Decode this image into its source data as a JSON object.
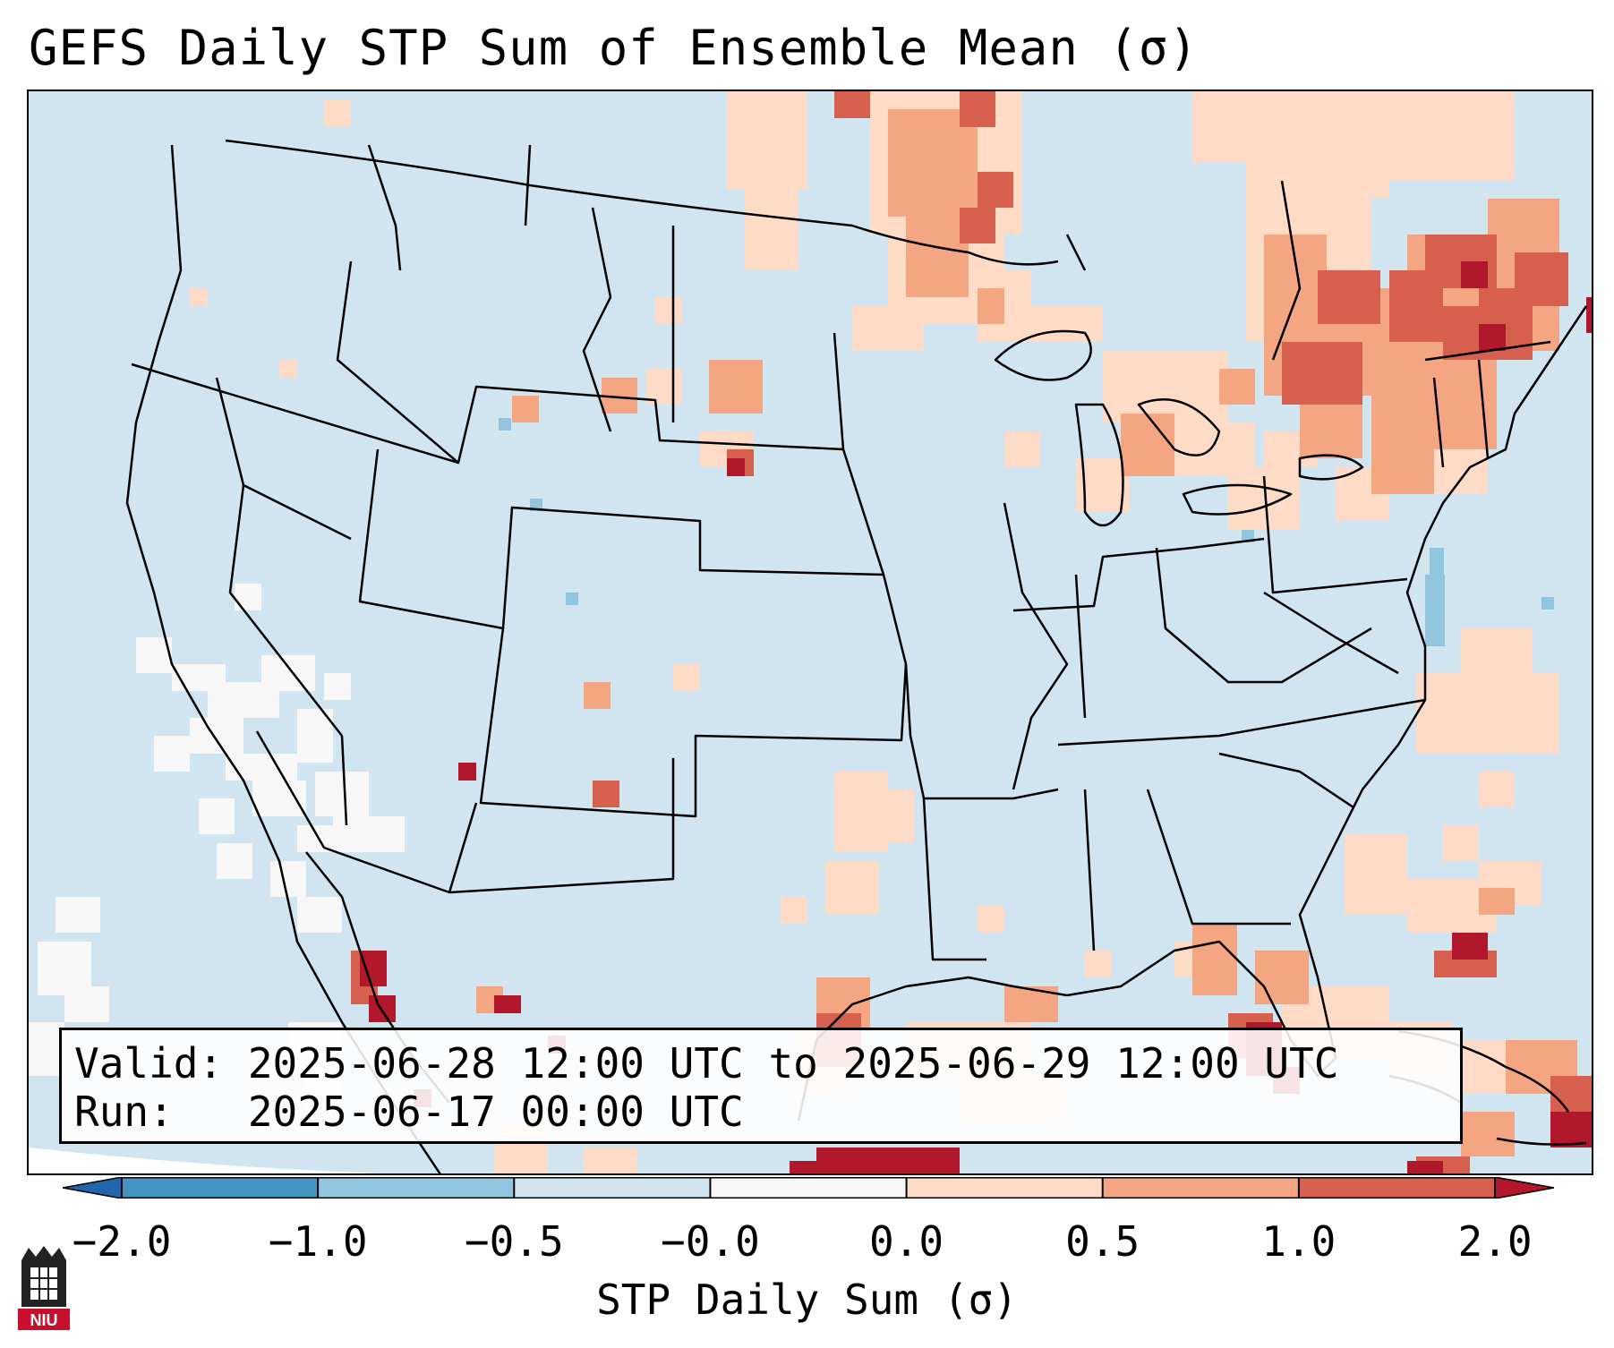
{
  "figure": {
    "title": "GEFS Daily STP Sum of Ensemble Mean (σ)",
    "valid_line": "Valid: 2025-06-28 12:00 UTC to 2025-06-29 12:00 UTC",
    "run_line": "Run:   2025-06-17 00:00 UTC",
    "colorbar_label": "STP Daily Sum (σ)",
    "logo_text": "NIU"
  },
  "colorbar": {
    "ticks": [
      "−2.0",
      "−1.0",
      "−0.5",
      "−0.0",
      "0.0",
      "0.5",
      "1.0",
      "2.0"
    ],
    "colors": [
      "#2166ac",
      "#4393c3",
      "#92c5de",
      "#d1e5f0",
      "#f7f7f7",
      "#fddbc7",
      "#f4a582",
      "#d6604d",
      "#b2182b"
    ]
  }
}
